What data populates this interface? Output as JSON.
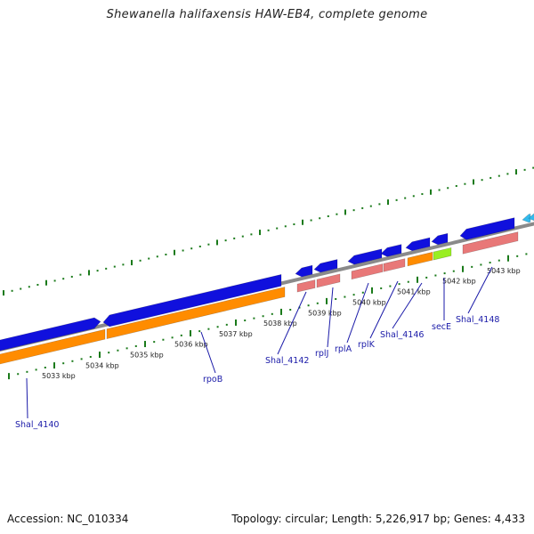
{
  "title": "Shewanella halifaxensis HAW-EB4, complete genome",
  "footer": {
    "accession": "Accession: NC_010334",
    "topology": "Topology: circular; Length: 5,226,917 bp; Genes: 4,433"
  },
  "colors": {
    "backbone": "#8a8a8a",
    "cds": "#1010dd",
    "gene": "#ff8c00",
    "rrna": "#e87878",
    "special": "#99ee22",
    "ticks": "#1a7a1a",
    "label": "#1a1aa8",
    "cyan": "#33bbee"
  },
  "kbp_labels": [
    "5033 kbp",
    "5034 kbp",
    "5035 kbp",
    "5036 kbp",
    "5037 kbp",
    "5038 kbp",
    "5039 kbp",
    "5040 kbp",
    "5041 kbp",
    "5042 kbp",
    "5043 kbp"
  ],
  "gene_labels": [
    "Shal_4140",
    "rpoB",
    "Shal_4142",
    "rplJ",
    "rplA",
    "rplK",
    "Shal_4146",
    "secE",
    "Shal_4148"
  ]
}
